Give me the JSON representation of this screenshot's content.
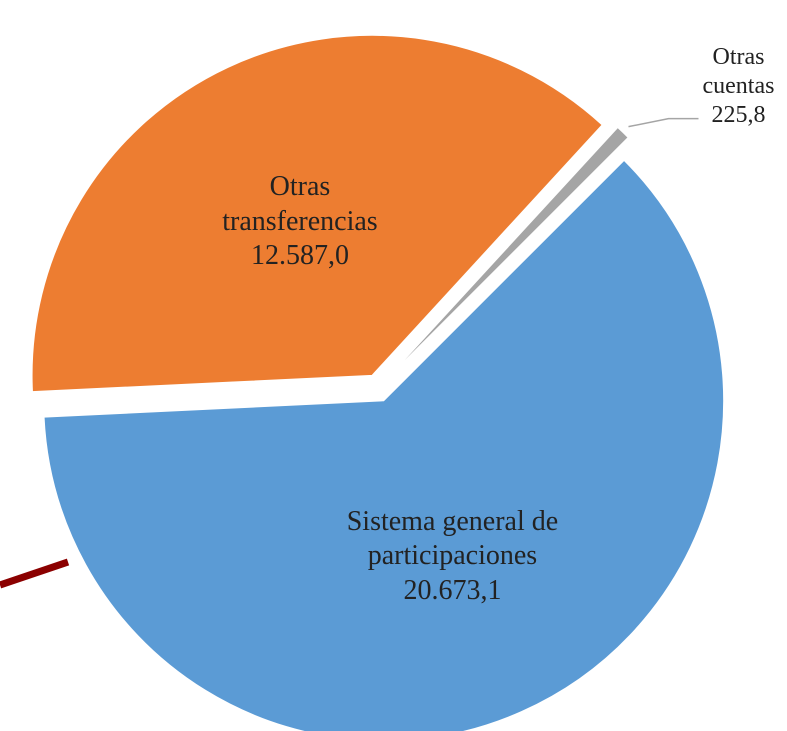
{
  "chart_data": {
    "type": "pie",
    "categories": [
      "Sistema general de participaciones",
      "Otras transferencias",
      "Otras cuentas"
    ],
    "values": [
      20673.1,
      12587.0,
      225.8
    ],
    "value_labels": [
      "20.673,1",
      "12.587,0",
      "225,8"
    ],
    "colors": [
      "#5b9bd5",
      "#ed7d31",
      "#a5a5a5"
    ]
  }
}
